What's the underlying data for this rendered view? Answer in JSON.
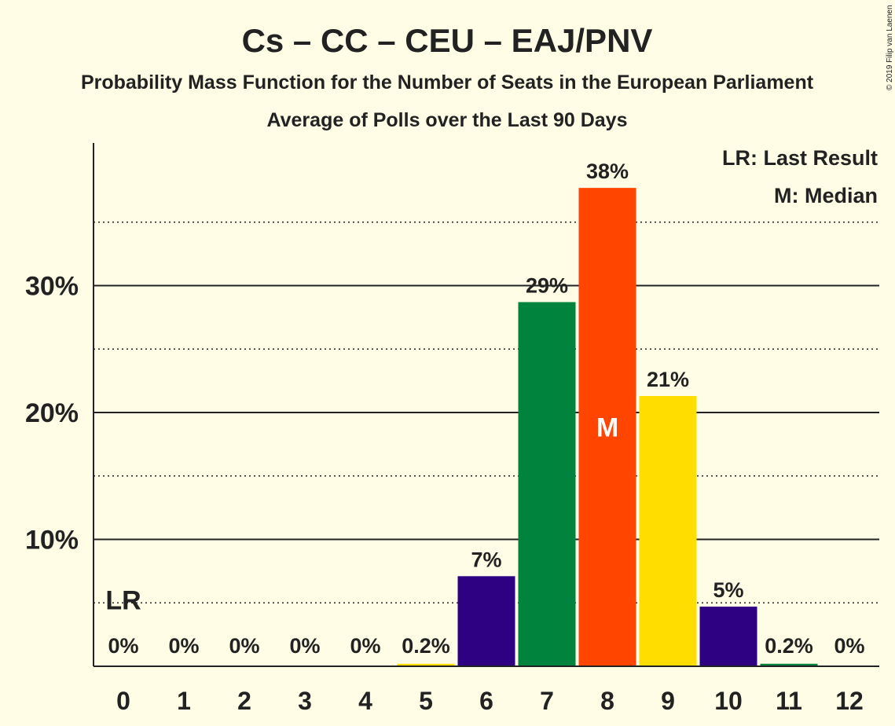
{
  "chart_data": {
    "type": "bar",
    "title": "Cs – CC – CEU – EAJ/PNV",
    "subtitle": "Probability Mass Function for the Number of Seats in the European Parliament",
    "subtitle2": "Average of Polls over the Last 90 Days",
    "copyright": "© 2019 Filip van Laenen",
    "xlabel": "",
    "ylabel": "",
    "categories": [
      "0",
      "1",
      "2",
      "3",
      "4",
      "5",
      "6",
      "7",
      "8",
      "9",
      "10",
      "11",
      "12"
    ],
    "values": [
      0,
      0,
      0,
      0,
      0,
      0.2,
      7.1,
      28.7,
      37.7,
      21.3,
      4.7,
      0.2,
      0
    ],
    "labels": [
      "0%",
      "0%",
      "0%",
      "0%",
      "0%",
      "0.2%",
      "7%",
      "29%",
      "38%",
      "21%",
      "5%",
      "0.2%",
      "0%"
    ],
    "colors": [
      "#FF5A1F",
      "#FF5A1F",
      "#FF5A1F",
      "#FF5A1F",
      "#FF5A1F",
      "#FFDD00",
      "#2E0082",
      "#00843D",
      "#FF4500",
      "#FFDD00",
      "#2E0082",
      "#00843D",
      "#FF5A1F"
    ],
    "ylim": [
      0,
      41
    ],
    "yticks": [
      10,
      20,
      30
    ],
    "ytick_labels": [
      "10%",
      "20%",
      "30%"
    ],
    "minor_gridlines": [
      5,
      15,
      25,
      35
    ],
    "last_result_seat": 0,
    "last_result_marker": "LR",
    "median_seat": 8,
    "median_marker": "M",
    "legend": [
      "LR: Last Result",
      "M: Median"
    ],
    "legend_position": "top-right"
  }
}
